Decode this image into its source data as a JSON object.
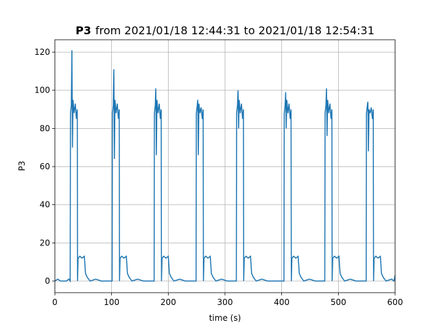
{
  "chart_data": {
    "type": "line",
    "title_bold": "P3",
    "title": "from 2021/01/18 12:44:31 to 2021/01/18 12:54:31",
    "xlabel": "time (s)",
    "ylabel": "P3",
    "xlim": [
      0,
      600
    ],
    "ylim": [
      -6.1,
      126.5
    ],
    "xticks": [
      0,
      100,
      200,
      300,
      400,
      500,
      600
    ],
    "yticks": [
      0,
      20,
      40,
      60,
      80,
      100,
      120
    ],
    "grid": true,
    "series": [
      {
        "color": "#1f77b4",
        "x": [
          0,
          5,
          10,
          15,
          20,
          25,
          27,
          27.5,
          29,
          30,
          31,
          32,
          34,
          36,
          38,
          39.5,
          40,
          41,
          44,
          48,
          52,
          54,
          57,
          62,
          72,
          82,
          92,
          101,
          101.5,
          103,
          104,
          105,
          106,
          108,
          110,
          112,
          113.5,
          114,
          115,
          118,
          122,
          126,
          128,
          131,
          136,
          146,
          156,
          166,
          175,
          175.5,
          177,
          178,
          179,
          180,
          182,
          184,
          186,
          187.5,
          188,
          189,
          192,
          196,
          200,
          202,
          205,
          210,
          220,
          230,
          240,
          249,
          249.5,
          251,
          252,
          253,
          254,
          256,
          258,
          260,
          261.5,
          262,
          263,
          266,
          270,
          274,
          276,
          279,
          284,
          294,
          304,
          314,
          320,
          320.5,
          322,
          323,
          324,
          325,
          327,
          329,
          331,
          332.5,
          333,
          334,
          337,
          341,
          345,
          347,
          350,
          355,
          365,
          375,
          385,
          395,
          404,
          404.5,
          406,
          407,
          408,
          409,
          411,
          413,
          415,
          416.5,
          417,
          418,
          421,
          425,
          429,
          431,
          434,
          439,
          449,
          459,
          469,
          476,
          476.5,
          478,
          479,
          480,
          481,
          483,
          485,
          487,
          488.5,
          489,
          490,
          493,
          497,
          501,
          503,
          506,
          511,
          521,
          531,
          541,
          549,
          549.5,
          551,
          552,
          553,
          554,
          556,
          558,
          560,
          561.5,
          562,
          563,
          566,
          570,
          574,
          576,
          579,
          584,
          594,
          598,
          600
        ],
        "values": [
          0,
          1,
          0,
          0,
          0,
          1,
          0,
          88,
          92,
          121,
          70,
          95,
          88,
          93,
          85,
          90,
          0,
          12,
          13,
          12,
          13,
          4,
          2,
          0,
          1,
          0,
          0,
          0,
          88,
          92,
          111,
          64,
          95,
          88,
          93,
          85,
          90,
          0,
          12,
          13,
          12,
          13,
          4,
          2,
          0,
          1,
          0,
          0,
          0,
          88,
          92,
          101,
          66,
          95,
          88,
          93,
          85,
          90,
          0,
          12,
          13,
          12,
          13,
          4,
          2,
          0,
          1,
          0,
          0,
          0,
          88,
          92,
          95,
          66,
          93,
          88,
          91,
          85,
          90,
          0,
          12,
          13,
          12,
          13,
          4,
          2,
          0,
          1,
          0,
          0,
          0,
          88,
          92,
          100,
          80,
          95,
          88,
          93,
          85,
          90,
          0,
          12,
          13,
          12,
          13,
          4,
          2,
          0,
          1,
          0,
          0,
          0,
          0,
          88,
          92,
          99,
          80,
          95,
          88,
          93,
          85,
          90,
          0,
          12,
          13,
          12,
          13,
          4,
          2,
          0,
          1,
          0,
          0,
          0,
          88,
          92,
          101,
          76,
          95,
          88,
          93,
          85,
          90,
          0,
          12,
          13,
          12,
          13,
          4,
          2,
          0,
          1,
          0,
          0,
          0,
          88,
          92,
          94,
          68,
          90,
          88,
          91,
          85,
          90,
          0,
          12,
          13,
          12,
          13,
          4,
          2,
          0,
          1,
          0,
          3
        ]
      }
    ]
  }
}
